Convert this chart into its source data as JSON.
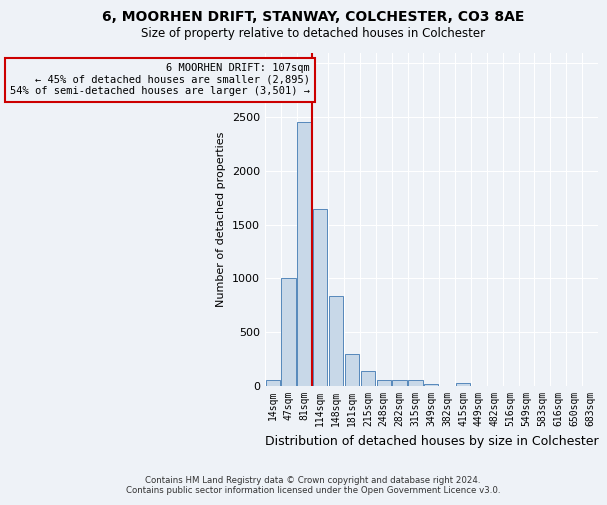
{
  "title_line1": "6, MOORHEN DRIFT, STANWAY, COLCHESTER, CO3 8AE",
  "title_line2": "Size of property relative to detached houses in Colchester",
  "xlabel": "Distribution of detached houses by size in Colchester",
  "ylabel": "Number of detached properties",
  "footnote": "Contains HM Land Registry data © Crown copyright and database right 2024.\nContains public sector information licensed under the Open Government Licence v3.0.",
  "bar_labels": [
    "14sqm",
    "47sqm",
    "81sqm",
    "114sqm",
    "148sqm",
    "181sqm",
    "215sqm",
    "248sqm",
    "282sqm",
    "315sqm",
    "349sqm",
    "382sqm",
    "415sqm",
    "449sqm",
    "482sqm",
    "516sqm",
    "549sqm",
    "583sqm",
    "616sqm",
    "650sqm",
    "683sqm"
  ],
  "bar_values": [
    60,
    1000,
    2450,
    1650,
    840,
    300,
    140,
    55,
    55,
    55,
    20,
    0,
    30,
    0,
    0,
    0,
    0,
    0,
    0,
    0,
    0
  ],
  "bar_color": "#c8d8e8",
  "bar_edge_color": "#5588bb",
  "ylim": [
    0,
    3100
  ],
  "yticks": [
    0,
    500,
    1000,
    1500,
    2000,
    2500,
    3000
  ],
  "property_line_label": "6 MOORHEN DRIFT: 107sqm",
  "annotation_line1": "← 45% of detached houses are smaller (2,895)",
  "annotation_line2": "54% of semi-detached houses are larger (3,501) →",
  "annotation_box_color": "#cc0000",
  "vline_color": "#cc0000",
  "bg_color": "#eef2f7",
  "grid_color": "#ffffff"
}
